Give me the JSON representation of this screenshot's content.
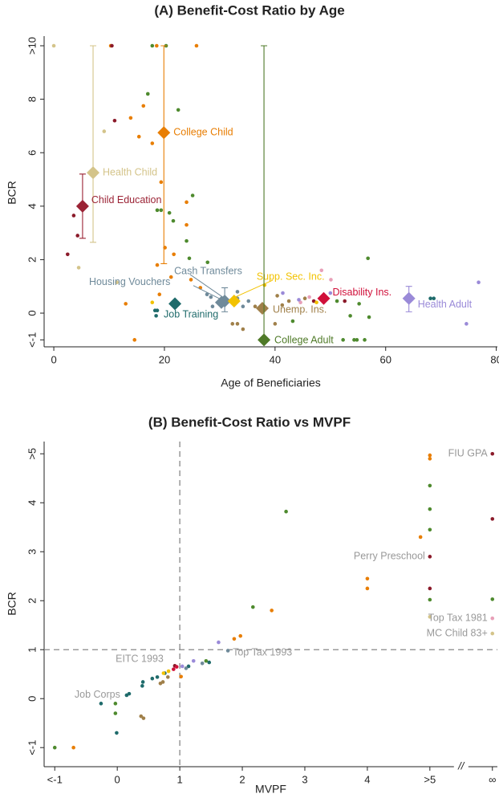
{
  "chart_data": [
    {
      "type": "scatter",
      "title": "(A) Benefit-Cost Ratio by Age",
      "x_label": "Age of Beneficiaries",
      "y_label": "BCR",
      "xlim": [
        -1.75,
        80.2
      ],
      "ylim": [
        -1.26,
        10.36
      ],
      "xticks": [
        0,
        20,
        40,
        60,
        80
      ],
      "yticks": [
        {
          "value": -1,
          "label": "<-1"
        },
        0,
        2,
        4,
        6,
        8,
        {
          "value": 10,
          "label": ">10"
        }
      ],
      "series": [
        {
          "color": "#e87e04",
          "x": [
            10.3,
            18.6,
            25.8,
            16.2,
            13.9,
            15.4,
            17.8,
            19.4,
            24,
            24,
            20.1,
            21.7,
            18.7,
            13,
            14.6,
            21.2,
            24.8,
            26.5,
            19.1
          ],
          "y": [
            10,
            10,
            10,
            7.75,
            7.3,
            6.6,
            6.35,
            4.9,
            4.15,
            3.3,
            2.45,
            2.2,
            1.8,
            0.35,
            -1,
            1.35,
            1.25,
            0.95,
            0.7
          ]
        },
        {
          "color": "#8b1a2a",
          "x": [
            11,
            10.5,
            3.6,
            4.3,
            2.5,
            52.6,
            47
          ],
          "y": [
            7.2,
            10,
            3.65,
            2.9,
            2.2,
            0.45,
            0.45
          ]
        },
        {
          "color": "#4e8a2e",
          "x": [
            17.8,
            20.3,
            17,
            22.5,
            25.1,
            18.7,
            19.4,
            20.9,
            21.6,
            24,
            24.5,
            27.8,
            56.8,
            57,
            53.6,
            52.3,
            54.3,
            54.8,
            56.2,
            51.2,
            55.2,
            43.2
          ],
          "y": [
            10,
            10,
            8.2,
            7.6,
            4.4,
            3.85,
            3.85,
            3.75,
            3.45,
            2.7,
            2.05,
            1.9,
            2.05,
            -0.15,
            -0.1,
            -1,
            -1,
            -1,
            -1,
            0.45,
            0.35,
            -0.3
          ]
        },
        {
          "color": "#d4c48a",
          "x": [
            0,
            9.1,
            4.5,
            11.4
          ],
          "y": [
            10,
            6.8,
            1.7,
            1.15
          ]
        },
        {
          "color": "#f2c200",
          "x": [
            17.8,
            38.1,
            47.5
          ],
          "y": [
            0.4,
            1.05,
            0.4
          ]
        },
        {
          "color": "#1f6b6b",
          "x": [
            18.3,
            18.7,
            18.5,
            68.1,
            68.7
          ],
          "y": [
            0.1,
            0.1,
            -0.1,
            0.55,
            0.55
          ]
        },
        {
          "color": "#6f8a9a",
          "x": [
            27.7,
            28.4,
            33.2,
            33.2,
            34.2,
            35.2,
            28.7
          ],
          "y": [
            0.7,
            0.6,
            0.8,
            0.55,
            0.25,
            0.45,
            0.25
          ]
        },
        {
          "color": "#a0804a",
          "x": [
            32.3,
            33.2,
            36.4,
            40.4,
            41.3,
            42.5,
            45.4,
            40,
            34.2
          ],
          "y": [
            -0.4,
            -0.4,
            0.25,
            0.65,
            0.3,
            0.45,
            0.55,
            -0.4,
            -0.6
          ]
        },
        {
          "color": "#e8a0b8",
          "x": [
            48.4,
            50.1,
            44.6,
            46.2
          ],
          "y": [
            1.6,
            1.25,
            0.4,
            0.6
          ]
        },
        {
          "color": "#9a8ad8",
          "x": [
            76.8,
            74.6,
            41.4,
            44.3,
            48.3,
            50
          ],
          "y": [
            1.15,
            -0.4,
            0.75,
            0.5,
            0.55,
            0.75
          ]
        }
      ],
      "highlights": [
        {
          "label": "Health Child",
          "color": "#d4c48a",
          "x": 7.1,
          "y": 5.25,
          "ci": [
            2.65,
            10
          ]
        },
        {
          "label": "College Child",
          "color": "#e87e04",
          "x": 19.9,
          "y": 6.75,
          "ci": [
            1.85,
            10
          ]
        },
        {
          "label": "Child Education",
          "color": "#9b2335",
          "x": 5.2,
          "y": 4.0,
          "ci": [
            2.8,
            5.2
          ]
        },
        {
          "label": "Cash Transfers",
          "color": "#6f8a9a",
          "x": 30.9,
          "y": 0.45,
          "ci": [
            0.05,
            0.95
          ]
        },
        {
          "label": "Housing Vouchers",
          "color": "#6f8a9a",
          "x": 30.3,
          "y": 0.4
        },
        {
          "label": "Supp. Sec. Inc.",
          "color": "#f2c200",
          "x": 32.6,
          "y": 0.45
        },
        {
          "label": "Job Training",
          "color": "#1f6b6b",
          "x": 21.9,
          "y": 0.35
        },
        {
          "label": "Unemp. Ins.",
          "color": "#a0804a",
          "x": 37.7,
          "y": 0.18
        },
        {
          "label": "Disability Ins.",
          "color": "#d0103a",
          "x": 48.8,
          "y": 0.55
        },
        {
          "label": "Health Adult",
          "color": "#9a8ad8",
          "x": 64.2,
          "y": 0.55,
          "ci": [
            0.05,
            1.0
          ]
        },
        {
          "label": "College Adult",
          "color": "#4f7a28",
          "x": 38,
          "y": -1,
          "ci": [
            -1,
            10
          ]
        }
      ]
    },
    {
      "type": "scatter",
      "title": "(B) Benefit-Cost Ratio vs MVPF",
      "x_label": "MVPF",
      "y_label": "BCR",
      "xlim": [
        -1.17,
        6.08
      ],
      "ylim": [
        -1.39,
        5.25
      ],
      "xticks": [
        {
          "value": -1,
          "label": "<-1"
        },
        0,
        1,
        2,
        3,
        4,
        {
          "value": 5,
          "label": ">5"
        },
        {
          "value": 6,
          "label": "∞"
        }
      ],
      "yticks": [
        {
          "value": -1,
          "label": "<-1"
        },
        0,
        1,
        2,
        3,
        4,
        {
          "value": 5,
          "label": ">5"
        }
      ],
      "vlines": [
        1
      ],
      "hlines": [
        1
      ],
      "axis_break": "//",
      "series": [
        {
          "color": "#e87e04",
          "x": [
            5,
            5,
            4.85,
            4,
            4,
            1.97,
            1.87,
            2.47,
            -0.7,
            1.02
          ],
          "y": [
            4.97,
            4.9,
            3.3,
            2.45,
            2.25,
            1.28,
            1.22,
            1.8,
            -1,
            0.45
          ]
        },
        {
          "color": "#4e8a2e",
          "x": [
            5,
            5,
            5,
            5,
            6,
            2.7,
            2.17,
            -1,
            -0.03,
            -0.03,
            1.42
          ],
          "y": [
            4.35,
            3.87,
            3.45,
            2.02,
            2.03,
            3.82,
            1.87,
            -1,
            -0.1,
            -0.3,
            0.77
          ]
        },
        {
          "color": "#8b1a2a",
          "x": [
            6,
            6,
            5,
            5,
            0.92
          ],
          "y": [
            5,
            3.67,
            2.9,
            2.25,
            0.67
          ]
        },
        {
          "color": "#1f6b6b",
          "x": [
            0.15,
            0.19,
            -0.26,
            0.4,
            0.41,
            0.56,
            0.64,
            0.76,
            1.47,
            1.14,
            -0.01
          ],
          "y": [
            0.07,
            0.1,
            -0.1,
            0.26,
            0.34,
            0.41,
            0.44,
            0.52,
            0.74,
            0.66,
            -0.7
          ]
        },
        {
          "color": "#9a8ad8",
          "x": [
            1.62,
            1.22,
            1.04
          ],
          "y": [
            1.15,
            0.77,
            0.66
          ]
        },
        {
          "color": "#e8a0b8",
          "x": [
            6
          ],
          "y": [
            1.64
          ]
        },
        {
          "color": "#d4c48a",
          "x": [
            5,
            6
          ],
          "y": [
            1.67,
            1.33
          ]
        },
        {
          "color": "#a0804a",
          "x": [
            0.38,
            0.42,
            0.69,
            0.73,
            0.81
          ],
          "y": [
            -0.36,
            -0.4,
            0.31,
            0.34,
            0.44
          ]
        },
        {
          "color": "#f2c200",
          "x": [
            0.74,
            0.82
          ],
          "y": [
            0.52,
            0.56
          ]
        },
        {
          "color": "#6f8a9a",
          "x": [
            1.1,
            1.36,
            1.77
          ],
          "y": [
            0.62,
            0.72,
            0.98
          ]
        },
        {
          "color": "#d0103a",
          "x": [
            0.9,
            0.95
          ],
          "y": [
            0.6,
            0.65
          ]
        }
      ],
      "annotations": [
        {
          "label": "FIU GPA",
          "x": 6,
          "y": 5
        },
        {
          "label": "Perry Preschool",
          "x": 5,
          "y": 2.9
        },
        {
          "label": "Top Tax 1981",
          "x": 6,
          "y": 1.64
        },
        {
          "label": "MC Child 83+",
          "x": 6,
          "y": 1.33
        },
        {
          "label": "Top Tax 1993",
          "x": 1.77,
          "y": 0.98
        },
        {
          "label": "EITC 1993",
          "x": 0.92,
          "y": 0.67
        },
        {
          "label": "Job Corps",
          "x": 0.15,
          "y": 0.07
        }
      ]
    }
  ]
}
